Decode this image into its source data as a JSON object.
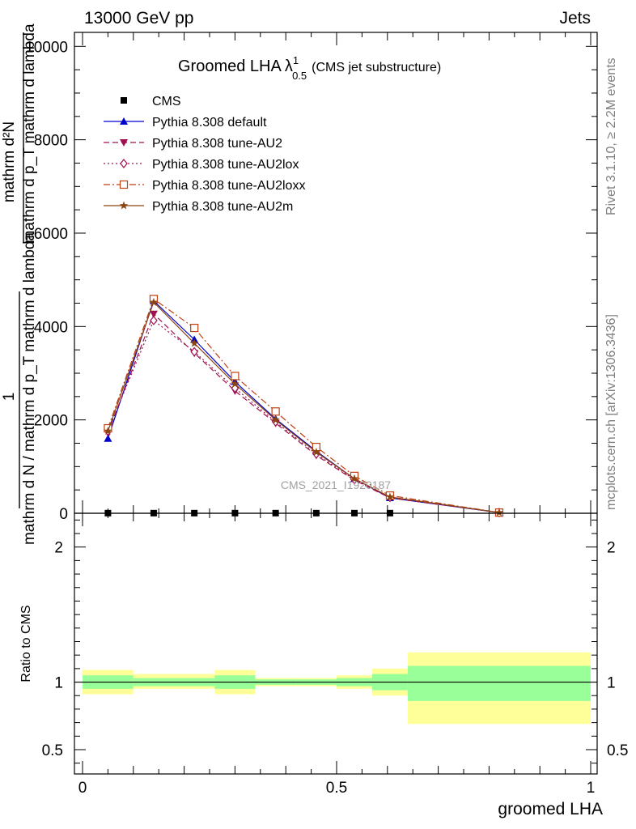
{
  "header": {
    "energy_label": "13000 GeV pp",
    "process_label": "Jets"
  },
  "side_labels": {
    "rivet": "Rivet 3.1.10, ≥ 2.2M events",
    "mcplots": "mcplots.cern.ch [arXiv:1306.3436]"
  },
  "watermark": "CMS_2021_I1920187",
  "chart_data": [
    {
      "type": "line",
      "title_main": "Groomed LHA",
      "title_lambda": "λ",
      "title_sup": "1",
      "title_sub": "0.5",
      "title_note": "(CMS jet substructure)",
      "xlabel": "groomed LHA",
      "ylabel_numerator": "1",
      "ylabel_denominator": "mathrm d N / mathrm d p_T mathrm d lambda",
      "ylabel_top": "mathrm d²N",
      "ylabel_bottom": "mathrm d p_T mathrm d lambda",
      "xlim": [
        0,
        1
      ],
      "ylim": [
        0,
        10300
      ],
      "yticks": [
        0,
        2000,
        4000,
        6000,
        8000,
        10000
      ],
      "ytick_labels": [
        "0",
        "2000",
        "4000",
        "6000",
        "8000",
        "10000"
      ],
      "legend_placement": "top-left",
      "series": [
        {
          "name": "CMS",
          "color": "#000000",
          "marker": "square-filled",
          "line": "none",
          "x": [
            0.05,
            0.14,
            0.22,
            0.3,
            0.38,
            0.46,
            0.535,
            0.605
          ],
          "y": [
            3,
            3,
            3,
            3,
            3,
            3,
            3,
            3
          ]
        },
        {
          "name": "Pythia 8.308 default",
          "color": "#0000cc",
          "marker": "triangle-up-filled",
          "line": "solid",
          "x": [
            0.05,
            0.14,
            0.22,
            0.3,
            0.38,
            0.46,
            0.535,
            0.605,
            0.82
          ],
          "y": [
            1600,
            4550,
            3720,
            2820,
            2020,
            1330,
            740,
            330,
            15
          ]
        },
        {
          "name": "Pythia 8.308 tune-AU2",
          "color": "#a01050",
          "marker": "triangle-down-filled",
          "line": "dashed",
          "x": [
            0.05,
            0.14,
            0.22,
            0.3,
            0.38,
            0.46,
            0.535,
            0.605,
            0.82
          ],
          "y": [
            1720,
            4270,
            3430,
            2620,
            1930,
            1240,
            710,
            330,
            15
          ]
        },
        {
          "name": "Pythia 8.308 tune-AU2lox",
          "color": "#a01050",
          "marker": "diamond-open",
          "line": "dotted",
          "x": [
            0.05,
            0.14,
            0.22,
            0.3,
            0.38,
            0.46,
            0.535,
            0.605,
            0.82
          ],
          "y": [
            1760,
            4130,
            3460,
            2680,
            1960,
            1270,
            720,
            340,
            15
          ]
        },
        {
          "name": "Pythia 8.308 tune-AU2loxx",
          "color": "#c04010",
          "marker": "square-open",
          "line": "dashdot",
          "x": [
            0.05,
            0.14,
            0.22,
            0.3,
            0.38,
            0.46,
            0.535,
            0.605,
            0.82
          ],
          "y": [
            1820,
            4590,
            3970,
            2940,
            2180,
            1420,
            800,
            380,
            15
          ]
        },
        {
          "name": "Pythia 8.308 tune-AU2m",
          "color": "#8b4513",
          "marker": "star-filled",
          "line": "solid",
          "x": [
            0.05,
            0.14,
            0.22,
            0.3,
            0.38,
            0.46,
            0.535,
            0.605,
            0.82
          ],
          "y": [
            1760,
            4520,
            3640,
            2770,
            2000,
            1310,
            740,
            350,
            15
          ]
        }
      ]
    },
    {
      "type": "area",
      "ylabel": "Ratio to CMS",
      "xlim": [
        0,
        1
      ],
      "ylim": [
        0.32,
        2.25
      ],
      "yticks": [
        0.5,
        1,
        2
      ],
      "ytick_labels": [
        "0.5",
        "1",
        "2"
      ],
      "xticks": [
        0,
        0.5,
        1
      ],
      "xtick_labels": [
        "0",
        "0.5",
        "1"
      ],
      "reference_line": 1,
      "bands": [
        {
          "x0": 0.0,
          "x1": 0.1,
          "inner": [
            0.95,
            1.05
          ],
          "outer": [
            0.91,
            1.09
          ]
        },
        {
          "x0": 0.1,
          "x1": 0.18,
          "inner": [
            0.97,
            1.03
          ],
          "outer": [
            0.95,
            1.06
          ]
        },
        {
          "x0": 0.18,
          "x1": 0.26,
          "inner": [
            0.97,
            1.03
          ],
          "outer": [
            0.95,
            1.06
          ]
        },
        {
          "x0": 0.26,
          "x1": 0.34,
          "inner": [
            0.95,
            1.05
          ],
          "outer": [
            0.91,
            1.09
          ]
        },
        {
          "x0": 0.34,
          "x1": 0.42,
          "inner": [
            0.98,
            1.02
          ],
          "outer": [
            0.97,
            1.03
          ]
        },
        {
          "x0": 0.42,
          "x1": 0.5,
          "inner": [
            0.98,
            1.02
          ],
          "outer": [
            0.97,
            1.03
          ]
        },
        {
          "x0": 0.5,
          "x1": 0.57,
          "inner": [
            0.97,
            1.03
          ],
          "outer": [
            0.95,
            1.05
          ]
        },
        {
          "x0": 0.57,
          "x1": 0.64,
          "inner": [
            0.94,
            1.06
          ],
          "outer": [
            0.9,
            1.1
          ]
        },
        {
          "x0": 0.64,
          "x1": 1.0,
          "inner": [
            0.86,
            1.12
          ],
          "outer": [
            0.69,
            1.22
          ]
        }
      ],
      "colors": {
        "inner": "#99ff99",
        "outer": "#ffff99"
      }
    }
  ]
}
